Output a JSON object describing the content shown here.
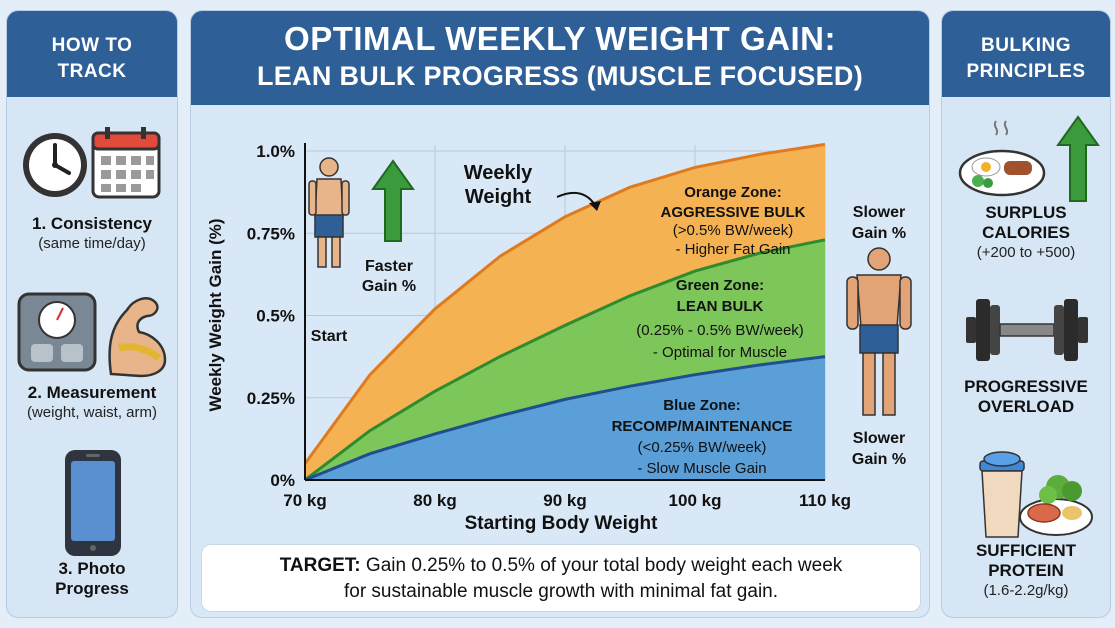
{
  "header": {
    "title_line1": "OPTIMAL WEEKLY WEIGHT GAIN:",
    "title_line2": "LEAN BULK PROGRESS (MUSCLE FOCUSED)"
  },
  "left_panel": {
    "title_line1": "HOW TO",
    "title_line2": "TRACK",
    "items": [
      {
        "title": "1. Consistency",
        "subtitle": "(same time/day)",
        "icons": [
          "clock-icon",
          "calendar-icon"
        ]
      },
      {
        "title": "2. Measurement",
        "subtitle": "(weight, waist, arm)",
        "icons": [
          "scale-icon",
          "flexed-arm-icon"
        ]
      },
      {
        "title_line1": "3. Photo",
        "title_line2": "Progress",
        "icons": [
          "smartphone-icon"
        ]
      }
    ]
  },
  "right_panel": {
    "title_line1": "BULKING",
    "title_line2": "PRINCIPLES",
    "items": [
      {
        "title_line1": "SURPLUS",
        "title_line2": "CALORIES",
        "subtitle": "(+200 to +500)",
        "icons": [
          "food-plate-icon",
          "up-arrow-icon"
        ]
      },
      {
        "title_line1": "PROGRESSIVE",
        "title_line2": "OVERLOAD",
        "icons": [
          "dumbbell-icon"
        ]
      },
      {
        "title_line1": "SUFFICIENT",
        "title_line2": "PROTEIN",
        "subtitle": "(1.6-2.2g/kg)",
        "icons": [
          "protein-shake-icon",
          "meal-icon"
        ]
      }
    ]
  },
  "chart_data": {
    "type": "area",
    "xlabel": "Starting Body Weight",
    "ylabel": "Weekly Weight Gain (%)",
    "x_ticks": [
      "70 kg",
      "80 kg",
      "90 kg",
      "100 kg",
      "110 kg"
    ],
    "y_ticks": [
      "0%",
      "0.25%",
      "0.5%",
      "0.75%",
      "1.0%"
    ],
    "xlim": [
      70,
      110
    ],
    "ylim": [
      0,
      1.0
    ],
    "grid": true,
    "x": [
      70,
      75,
      80,
      85,
      90,
      95,
      100,
      105,
      110
    ],
    "series": [
      {
        "zone": "blue",
        "values": [
          0,
          0.08,
          0.14,
          0.195,
          0.245,
          0.285,
          0.32,
          0.35,
          0.375
        ],
        "color": "#5b9fd9"
      },
      {
        "zone": "green",
        "values": [
          0,
          0.15,
          0.27,
          0.375,
          0.47,
          0.56,
          0.635,
          0.69,
          0.73
        ],
        "color": "#7cc65a"
      },
      {
        "zone": "orange",
        "values": [
          0.05,
          0.32,
          0.52,
          0.68,
          0.8,
          0.89,
          0.95,
          0.99,
          1.02
        ],
        "color": "#f5b253"
      }
    ],
    "annotations": {
      "weekly_weight_line1": "Weekly",
      "weekly_weight_line2": "Weight",
      "orange_zone": [
        "Orange Zone:",
        "AGGRESSIVE BULK",
        "(>0.5% BW/week)",
        "- Higher Fat Gain"
      ],
      "green_zone": [
        "Green Zone:",
        "LEAN BULK",
        "(0.25% - 0.5% BW/week)",
        "- Optimal for Muscle"
      ],
      "blue_zone": [
        "Blue Zone:",
        "RECOMP/MAINTENANCE",
        "(<0.25% BW/week)",
        "- Slow Muscle Gain"
      ],
      "start_label": "Start",
      "faster_gain_line1": "Faster",
      "faster_gain_line2": "Gain %",
      "slower_gain_top_line1": "Slower",
      "slower_gain_top_line2": "Gain %",
      "slower_gain_bottom_line1": "Slower",
      "slower_gain_bottom_line2": "Gain %"
    }
  },
  "target": {
    "label": "TARGET:",
    "text_line1": " Gain 0.25% to 0.5% of your total body weight each week",
    "text_line2": "for sustainable muscle growth with minimal fat gain."
  },
  "colors": {
    "header_blue": "#2f5f97",
    "orange_zone": "#f5b253",
    "green_zone": "#7cc65a",
    "blue_zone": "#5b9fd9",
    "arrow_green": "#3b9a3b"
  }
}
